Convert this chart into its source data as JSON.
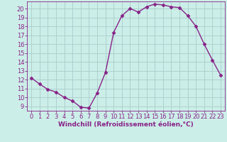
{
  "x": [
    0,
    1,
    2,
    3,
    4,
    5,
    6,
    7,
    8,
    9,
    10,
    11,
    12,
    13,
    14,
    15,
    16,
    17,
    18,
    19,
    20,
    21,
    22,
    23
  ],
  "y": [
    12.2,
    11.5,
    10.9,
    10.6,
    10.0,
    9.6,
    8.9,
    8.8,
    10.5,
    12.8,
    17.3,
    19.2,
    20.0,
    19.6,
    20.2,
    20.5,
    20.4,
    20.2,
    20.1,
    19.2,
    18.0,
    16.0,
    14.2,
    12.5
  ],
  "color": "#882288",
  "bg_color": "#cceee8",
  "grid_color": "#aacccc",
  "xlabel": "Windchill (Refroidissement éolien,°C)",
  "xlim": [
    -0.5,
    23.5
  ],
  "ylim": [
    8.5,
    20.8
  ],
  "yticks": [
    9,
    10,
    11,
    12,
    13,
    14,
    15,
    16,
    17,
    18,
    19,
    20
  ],
  "xticks": [
    0,
    1,
    2,
    3,
    4,
    5,
    6,
    7,
    8,
    9,
    10,
    11,
    12,
    13,
    14,
    15,
    16,
    17,
    18,
    19,
    20,
    21,
    22,
    23
  ],
  "marker": "D",
  "markersize": 2.5,
  "linewidth": 1.0,
  "font_color": "#882288",
  "tick_font_size": 6,
  "label_font_size": 6.5
}
